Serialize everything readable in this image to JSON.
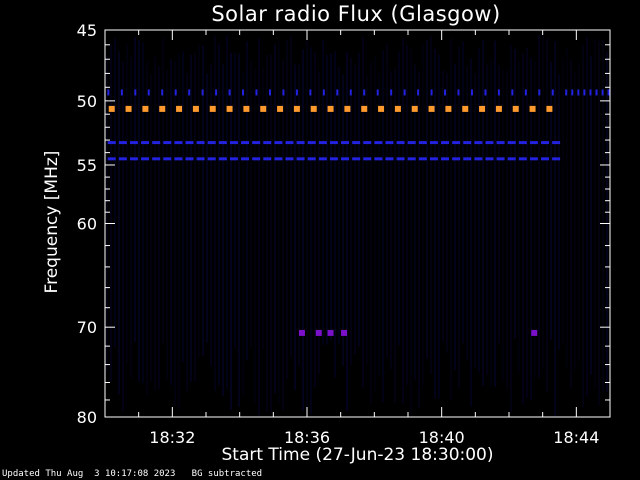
{
  "footer": {
    "updated": "Updated Thu Aug  3 10:17:08 2023",
    "note": "BG subtracted"
  },
  "chart_data": {
    "type": "heatmap",
    "title": "Solar radio Flux (Glasgow)",
    "xlabel": "Start Time (27-Jun-23 18:30:00)",
    "ylabel": "Frequency [MHz]",
    "x_ticks": [
      "18:32",
      "18:36",
      "18:40",
      "18:44"
    ],
    "x_tick_minutes": [
      32,
      36,
      40,
      44
    ],
    "xlim_minutes": [
      30,
      45
    ],
    "y_ticks": [
      45,
      50,
      55,
      60,
      70,
      80
    ],
    "ylim": [
      45,
      80
    ],
    "y_scale": "log",
    "colors": {
      "background": "#000000",
      "axes": "#ffffff",
      "strong_band": "#ff9a2e",
      "medium_band": "#2222e0",
      "weak_emission": "#7a10c8",
      "noise": "#0a0a55"
    },
    "bands": [
      {
        "freq": 49.6,
        "kind": "tick",
        "x_start": 30.1,
        "x_end": 43.6,
        "step": 0.4,
        "color": "medium_band"
      },
      {
        "freq": 49.6,
        "kind": "tick",
        "x_start": 43.7,
        "x_end": 45.0,
        "step": 0.18,
        "color": "medium_band"
      },
      {
        "freq": 50.6,
        "kind": "dash",
        "x_start": 30.2,
        "x_end": 43.5,
        "step": 0.5,
        "color": "strong_band"
      },
      {
        "freq": 53.2,
        "kind": "dash",
        "x_start": 30.2,
        "x_end": 43.5,
        "step": 0.33,
        "color": "medium_band"
      },
      {
        "freq": 54.5,
        "kind": "dash",
        "x_start": 30.2,
        "x_end": 43.5,
        "step": 0.33,
        "color": "medium_band"
      }
    ],
    "spots": [
      {
        "x": 35.85,
        "freq": 70.6
      },
      {
        "x": 36.35,
        "freq": 70.6
      },
      {
        "x": 36.7,
        "freq": 70.6
      },
      {
        "x": 37.1,
        "freq": 70.6
      },
      {
        "x": 42.75,
        "freq": 70.6
      }
    ]
  }
}
